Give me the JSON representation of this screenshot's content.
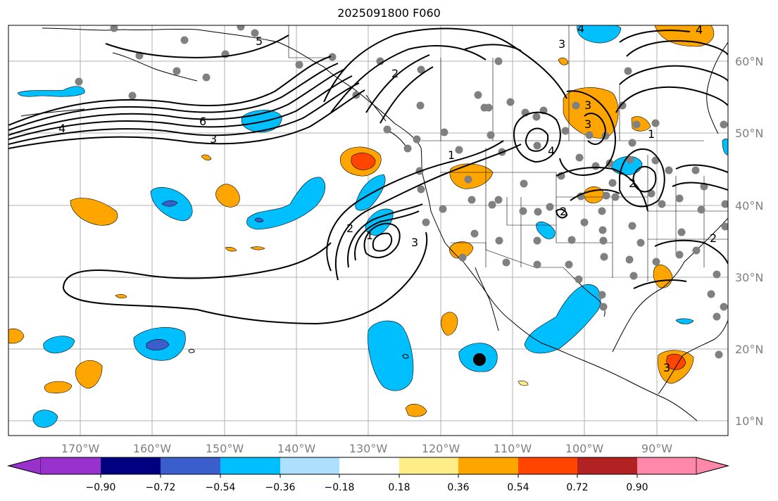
{
  "title": "2025091800 F060",
  "map": {
    "lon_labels": [
      "170°W",
      "160°W",
      "150°W",
      "140°W",
      "130°W",
      "120°W",
      "110°W",
      "100°W",
      "90°W"
    ],
    "lat_labels": [
      "60°N",
      "50°N",
      "40°N",
      "30°N",
      "20°N",
      "10°N"
    ],
    "contour_labels": [
      "5",
      "4",
      "6",
      "3",
      "2",
      "1",
      "3",
      "4",
      "2",
      "1",
      "3",
      "2",
      "2",
      "3",
      "4",
      "3",
      "2",
      "3",
      "4",
      "1"
    ]
  },
  "colorbar": {
    "ticks": [
      "−0.90",
      "−0.72",
      "−0.54",
      "−0.36",
      "−0.18",
      "0.18",
      "0.36",
      "0.54",
      "0.72",
      "0.90"
    ],
    "colors": {
      "min_ext": "#9932CC",
      "c1": "#000080",
      "c2": "#3A5FCD",
      "c3": "#00BFFF",
      "c4": "#ADE0FF",
      "c5": "#FFFFFF",
      "c6": "#FFEE88",
      "c7": "#FFA500",
      "c8": "#FF4500",
      "c9": "#B22222",
      "max_ext": "#FF88AA"
    }
  }
}
